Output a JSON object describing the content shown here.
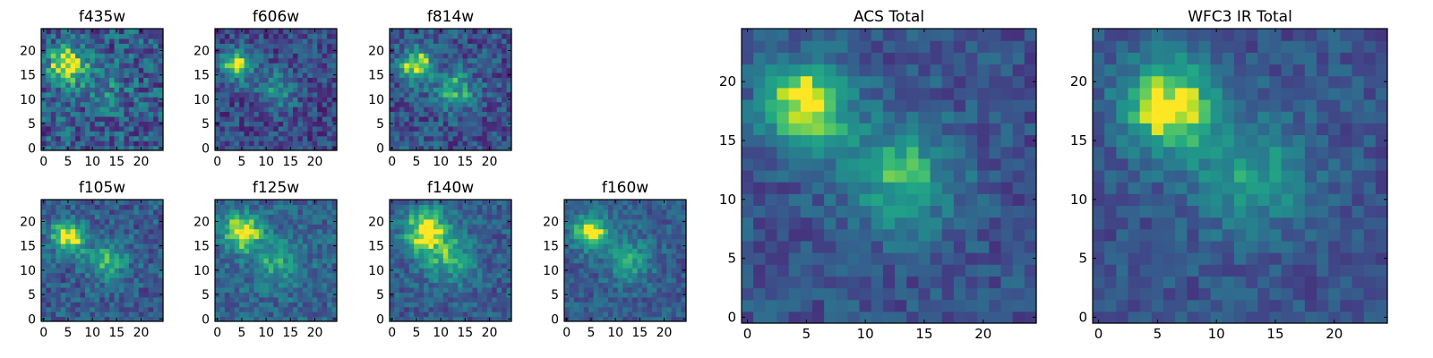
{
  "chart_data": [
    {
      "type": "heatmap",
      "title": "f435w",
      "grid_size": 25,
      "xlim": [
        0,
        24
      ],
      "ylim": [
        0,
        24
      ],
      "xticks": [
        0,
        5,
        10,
        15,
        20
      ],
      "yticks": [
        0,
        5,
        10,
        15,
        20
      ],
      "colormap": "viridis",
      "features": [
        {
          "x": 5,
          "y": 17,
          "peak": 0.95,
          "spread": 2.6
        },
        {
          "x": 13,
          "y": 12,
          "peak": 0.25,
          "spread": 3.0
        }
      ],
      "noise": 0.42,
      "base": 0.5
    },
    {
      "type": "heatmap",
      "title": "f606w",
      "grid_size": 25,
      "xlim": [
        0,
        24
      ],
      "ylim": [
        0,
        24
      ],
      "xticks": [
        0,
        5,
        10,
        15,
        20
      ],
      "yticks": [
        0,
        5,
        10,
        15,
        20
      ],
      "colormap": "viridis",
      "features": [
        {
          "x": 4,
          "y": 17,
          "peak": 0.85,
          "spread": 2.2
        },
        {
          "x": 12,
          "y": 12,
          "peak": 0.45,
          "spread": 2.8
        }
      ],
      "noise": 0.32,
      "base": 0.4
    },
    {
      "type": "heatmap",
      "title": "f814w",
      "grid_size": 25,
      "xlim": [
        0,
        24
      ],
      "ylim": [
        0,
        24
      ],
      "xticks": [
        0,
        5,
        10,
        15,
        20
      ],
      "yticks": [
        0,
        5,
        10,
        15,
        20
      ],
      "colormap": "viridis",
      "features": [
        {
          "x": 5,
          "y": 17,
          "peak": 0.9,
          "spread": 2.3
        },
        {
          "x": 13,
          "y": 12,
          "peak": 0.55,
          "spread": 2.8
        }
      ],
      "noise": 0.34,
      "base": 0.45
    },
    {
      "type": "heatmap",
      "title": "f105w",
      "grid_size": 25,
      "xlim": [
        0,
        24
      ],
      "ylim": [
        0,
        24
      ],
      "xticks": [
        0,
        5,
        10,
        15,
        20
      ],
      "yticks": [
        0,
        5,
        10,
        15,
        20
      ],
      "colormap": "viridis",
      "features": [
        {
          "x": 5,
          "y": 17,
          "peak": 0.9,
          "spread": 2.4
        },
        {
          "x": 13,
          "y": 12,
          "peak": 0.45,
          "spread": 3.2
        }
      ],
      "noise": 0.3,
      "base": 0.5
    },
    {
      "type": "heatmap",
      "title": "f125w",
      "grid_size": 25,
      "xlim": [
        0,
        24
      ],
      "ylim": [
        0,
        24
      ],
      "xticks": [
        0,
        5,
        10,
        15,
        20
      ],
      "yticks": [
        0,
        5,
        10,
        15,
        20
      ],
      "colormap": "viridis",
      "features": [
        {
          "x": 5,
          "y": 18,
          "peak": 0.85,
          "spread": 2.6
        },
        {
          "x": 12,
          "y": 12,
          "peak": 0.4,
          "spread": 3.5
        }
      ],
      "noise": 0.28,
      "base": 0.55
    },
    {
      "type": "heatmap",
      "title": "f140w",
      "grid_size": 25,
      "xlim": [
        0,
        24
      ],
      "ylim": [
        0,
        24
      ],
      "xticks": [
        0,
        5,
        10,
        15,
        20
      ],
      "yticks": [
        0,
        5,
        10,
        15,
        20
      ],
      "colormap": "viridis",
      "features": [
        {
          "x": 7,
          "y": 18,
          "peak": 0.9,
          "spread": 3.2
        },
        {
          "x": 12,
          "y": 12,
          "peak": 0.45,
          "spread": 3.6
        }
      ],
      "noise": 0.26,
      "base": 0.5
    },
    {
      "type": "heatmap",
      "title": "f160w",
      "grid_size": 25,
      "xlim": [
        0,
        24
      ],
      "ylim": [
        0,
        24
      ],
      "xticks": [
        0,
        5,
        10,
        15,
        20
      ],
      "yticks": [
        0,
        5,
        10,
        15,
        20
      ],
      "colormap": "viridis",
      "features": [
        {
          "x": 5,
          "y": 18,
          "peak": 0.95,
          "spread": 2.4
        },
        {
          "x": 13,
          "y": 12,
          "peak": 0.45,
          "spread": 3.2
        }
      ],
      "noise": 0.24,
      "base": 0.5
    },
    {
      "type": "heatmap",
      "title": "ACS Total",
      "grid_size": 25,
      "xlim": [
        0,
        24
      ],
      "ylim": [
        0,
        24
      ],
      "xticks": [
        0,
        5,
        10,
        15,
        20
      ],
      "yticks": [
        0,
        5,
        10,
        15,
        20
      ],
      "colormap": "viridis",
      "features": [
        {
          "x": 5,
          "y": 18,
          "peak": 0.9,
          "spread": 2.6
        },
        {
          "x": 13,
          "y": 12,
          "peak": 0.6,
          "spread": 3.2
        }
      ],
      "noise": 0.22,
      "base": 0.45
    },
    {
      "type": "heatmap",
      "title": "WFC3 IR Total",
      "grid_size": 25,
      "xlim": [
        0,
        24
      ],
      "ylim": [
        0,
        24
      ],
      "xticks": [
        0,
        5,
        10,
        15,
        20
      ],
      "yticks": [
        0,
        5,
        10,
        15,
        20
      ],
      "colormap": "viridis",
      "features": [
        {
          "x": 6,
          "y": 18,
          "peak": 0.9,
          "spread": 2.8
        },
        {
          "x": 13,
          "y": 12,
          "peak": 0.45,
          "spread": 3.5
        }
      ],
      "noise": 0.2,
      "base": 0.45
    }
  ]
}
